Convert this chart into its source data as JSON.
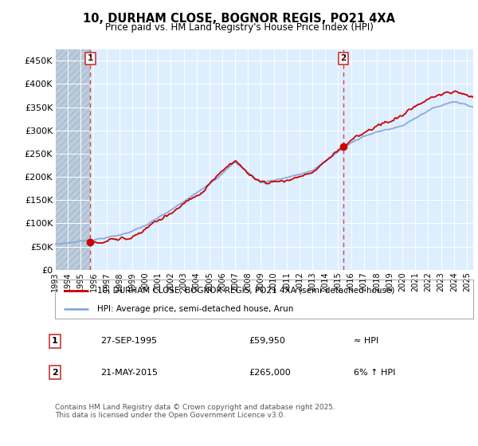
{
  "title": "10, DURHAM CLOSE, BOGNOR REGIS, PO21 4XA",
  "subtitle": "Price paid vs. HM Land Registry's House Price Index (HPI)",
  "legend_line1": "10, DURHAM CLOSE, BOGNOR REGIS, PO21 4XA (semi-detached house)",
  "legend_line2": "HPI: Average price, semi-detached house, Arun",
  "sale1_date": "27-SEP-1995",
  "sale1_price": 59950,
  "sale1_label": "≈ HPI",
  "sale1_num": "1",
  "sale2_date": "21-MAY-2015",
  "sale2_price": 265000,
  "sale2_label": "6% ↑ HPI",
  "sale2_num": "2",
  "footnote": "Contains HM Land Registry data © Crown copyright and database right 2025.\nThis data is licensed under the Open Government Licence v3.0.",
  "ylim": [
    0,
    475000
  ],
  "yticks": [
    0,
    50000,
    100000,
    150000,
    200000,
    250000,
    300000,
    350000,
    400000,
    450000
  ],
  "ytick_labels": [
    "£0",
    "£50K",
    "£100K",
    "£150K",
    "£200K",
    "£250K",
    "£300K",
    "£350K",
    "£400K",
    "£450K"
  ],
  "line_color": "#cc0000",
  "hpi_color": "#88aadd",
  "sale_marker_color": "#cc0000",
  "vline_color": "#dd4444",
  "plot_bg_color": "#ddeeff",
  "hatch_color": "#bbccdd"
}
